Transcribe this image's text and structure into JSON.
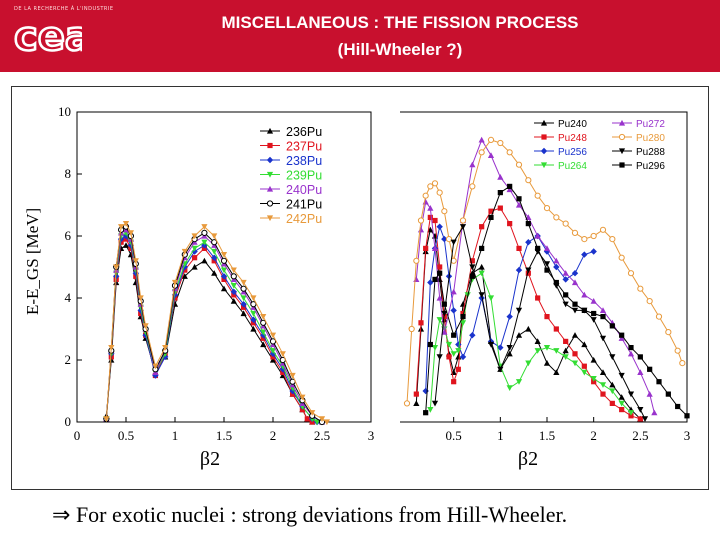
{
  "header": {
    "org_small": "DE LA RECHERCHE À L'INDUSTRIE",
    "logo_text": "cea",
    "title_line1": "MISCELLANEOUS : THE FISSION PROCESS",
    "title_line2": "(Hill-Wheeler ?)"
  },
  "caption": {
    "arrow": "⇒",
    "text": "For exotic nuclei : strong deviations from Hill-Wheeler."
  },
  "chart_data": [
    {
      "type": "line",
      "panel": "left",
      "ylabel": "E-E_GS [MeV]",
      "xlabel": "β2",
      "xlim": [
        0,
        3
      ],
      "ylim": [
        0,
        10
      ],
      "xticks": [
        "0",
        "0.5",
        "1",
        "1.5",
        "2",
        "2.5",
        "3"
      ],
      "yticks": [
        "0",
        "2",
        "4",
        "6",
        "8",
        "10"
      ],
      "legend_position": "top-right",
      "series": [
        {
          "name": "236Pu",
          "color": "#000000",
          "marker": "triangle",
          "x": [
            0.3,
            0.35,
            0.4,
            0.45,
            0.5,
            0.55,
            0.6,
            0.65,
            0.7,
            0.8,
            0.9,
            1.0,
            1.1,
            1.2,
            1.3,
            1.4,
            1.5,
            1.6,
            1.7,
            1.8,
            1.9,
            2.0,
            2.1,
            2.2,
            2.3,
            2.35,
            2.4
          ],
          "y": [
            0.2,
            2.0,
            4.5,
            5.6,
            5.7,
            5.4,
            4.5,
            3.4,
            2.7,
            1.6,
            2.1,
            3.8,
            4.7,
            5.0,
            5.2,
            4.8,
            4.3,
            3.9,
            3.5,
            3.0,
            2.5,
            2.0,
            1.5,
            0.9,
            0.4,
            0.1,
            0.0
          ]
        },
        {
          "name": "237Pu",
          "color": "#e0141e",
          "marker": "square",
          "x": [
            0.3,
            0.35,
            0.4,
            0.45,
            0.5,
            0.55,
            0.6,
            0.65,
            0.7,
            0.8,
            0.9,
            1.0,
            1.1,
            1.2,
            1.3,
            1.4,
            1.5,
            1.6,
            1.7,
            1.8,
            1.9,
            2.0,
            2.1,
            2.2,
            2.3,
            2.35,
            2.4
          ],
          "y": [
            0.1,
            2.1,
            4.6,
            5.8,
            5.9,
            5.6,
            4.7,
            3.5,
            2.8,
            1.5,
            2.2,
            4.0,
            4.9,
            5.3,
            5.6,
            5.2,
            4.6,
            4.1,
            3.7,
            3.2,
            2.7,
            2.1,
            1.6,
            0.9,
            0.4,
            0.1,
            0.0
          ]
        },
        {
          "name": "238Pu",
          "color": "#1a33cc",
          "marker": "diamond",
          "x": [
            0.3,
            0.35,
            0.4,
            0.45,
            0.5,
            0.55,
            0.6,
            0.65,
            0.7,
            0.8,
            0.9,
            1.0,
            1.1,
            1.2,
            1.3,
            1.4,
            1.5,
            1.6,
            1.7,
            1.8,
            1.9,
            2.0,
            2.1,
            2.2,
            2.3,
            2.4,
            2.45
          ],
          "y": [
            0.1,
            2.2,
            4.7,
            5.9,
            6.0,
            5.7,
            4.8,
            3.6,
            2.8,
            1.5,
            2.1,
            4.1,
            5.0,
            5.5,
            5.7,
            5.3,
            4.7,
            4.2,
            3.8,
            3.3,
            2.8,
            2.2,
            1.7,
            1.0,
            0.5,
            0.1,
            0.0
          ]
        },
        {
          "name": "239Pu",
          "color": "#33dd33",
          "marker": "triangle-down",
          "x": [
            0.3,
            0.35,
            0.4,
            0.45,
            0.5,
            0.55,
            0.6,
            0.65,
            0.7,
            0.8,
            0.9,
            1.0,
            1.1,
            1.2,
            1.3,
            1.4,
            1.5,
            1.6,
            1.7,
            1.8,
            1.9,
            2.0,
            2.1,
            2.2,
            2.3,
            2.4,
            2.45
          ],
          "y": [
            0.1,
            2.2,
            4.8,
            6.0,
            6.1,
            5.8,
            4.9,
            3.7,
            2.9,
            1.6,
            2.2,
            4.2,
            5.1,
            5.6,
            5.8,
            5.5,
            4.9,
            4.4,
            4.0,
            3.5,
            2.9,
            2.3,
            1.8,
            1.1,
            0.5,
            0.1,
            0.0
          ]
        },
        {
          "name": "240Pu",
          "color": "#9933cc",
          "marker": "triangle",
          "x": [
            0.3,
            0.35,
            0.4,
            0.45,
            0.5,
            0.55,
            0.6,
            0.65,
            0.7,
            0.8,
            0.9,
            1.0,
            1.1,
            1.2,
            1.3,
            1.4,
            1.5,
            1.6,
            1.7,
            1.8,
            1.9,
            2.0,
            2.1,
            2.2,
            2.3,
            2.4,
            2.5
          ],
          "y": [
            0.1,
            2.3,
            4.9,
            6.1,
            6.2,
            5.9,
            5.0,
            3.8,
            3.0,
            1.6,
            2.3,
            4.3,
            5.3,
            5.8,
            6.0,
            5.7,
            5.1,
            4.6,
            4.2,
            3.7,
            3.1,
            2.5,
            1.9,
            1.2,
            0.6,
            0.2,
            0.0
          ]
        },
        {
          "name": "241Pu",
          "color": "#000000",
          "marker": "open-circle",
          "x": [
            0.3,
            0.35,
            0.4,
            0.45,
            0.5,
            0.55,
            0.6,
            0.65,
            0.7,
            0.8,
            0.9,
            1.0,
            1.1,
            1.2,
            1.3,
            1.4,
            1.5,
            1.6,
            1.7,
            1.8,
            1.9,
            2.0,
            2.1,
            2.2,
            2.3,
            2.4,
            2.5
          ],
          "y": [
            0.1,
            2.3,
            5.0,
            6.2,
            6.3,
            6.0,
            5.1,
            3.9,
            3.0,
            1.7,
            2.3,
            4.4,
            5.4,
            5.9,
            6.1,
            5.8,
            5.2,
            4.7,
            4.3,
            3.8,
            3.2,
            2.6,
            2.0,
            1.3,
            0.7,
            0.2,
            0.0
          ]
        },
        {
          "name": "242Pu",
          "color": "#e89a3c",
          "marker": "triangle-down",
          "x": [
            0.3,
            0.35,
            0.4,
            0.45,
            0.5,
            0.55,
            0.6,
            0.65,
            0.7,
            0.8,
            0.9,
            1.0,
            1.1,
            1.2,
            1.3,
            1.4,
            1.5,
            1.6,
            1.7,
            1.8,
            1.9,
            2.0,
            2.1,
            2.2,
            2.3,
            2.4,
            2.5,
            2.55
          ],
          "y": [
            0.1,
            2.4,
            5.0,
            6.3,
            6.4,
            6.1,
            5.2,
            4.0,
            3.1,
            1.8,
            2.4,
            4.5,
            5.5,
            6.0,
            6.3,
            6.0,
            5.4,
            4.9,
            4.5,
            4.0,
            3.4,
            2.8,
            2.2,
            1.5,
            0.8,
            0.3,
            0.1,
            0.0
          ]
        }
      ]
    },
    {
      "type": "line",
      "panel": "right",
      "xlabel": "β2",
      "xlim": [
        0,
        3
      ],
      "xticks": [
        "0.5",
        "1",
        "1.5",
        "2",
        "2.5",
        "3"
      ],
      "legend_position": "top-right",
      "series": [
        {
          "name": "Pu240",
          "color": "#000000",
          "marker": "triangle",
          "x": [
            0.1,
            0.15,
            0.2,
            0.25,
            0.3,
            0.35,
            0.4,
            0.45,
            0.5,
            0.55,
            0.6,
            0.7,
            0.8,
            0.9,
            1.0,
            1.1,
            1.2,
            1.3,
            1.4,
            1.5,
            1.6,
            1.7,
            1.8,
            1.9,
            2.0,
            2.1,
            2.2,
            2.3,
            2.4,
            2.5
          ],
          "y": [
            0.6,
            3.0,
            5.5,
            6.2,
            6.0,
            4.6,
            3.3,
            2.2,
            1.6,
            2.1,
            3.8,
            4.8,
            5.0,
            2.6,
            1.7,
            2.2,
            2.8,
            3.0,
            2.6,
            1.9,
            1.6,
            2.3,
            2.8,
            2.5,
            2.0,
            1.6,
            1.2,
            0.8,
            0.4,
            0.1
          ]
        },
        {
          "name": "Pu248",
          "color": "#e0141e",
          "marker": "square",
          "x": [
            0.1,
            0.15,
            0.2,
            0.25,
            0.3,
            0.35,
            0.4,
            0.45,
            0.5,
            0.55,
            0.6,
            0.7,
            0.8,
            0.9,
            1.0,
            1.1,
            1.2,
            1.3,
            1.4,
            1.5,
            1.6,
            1.7,
            1.8,
            1.9,
            2.0,
            2.1,
            2.2,
            2.3,
            2.4,
            2.5
          ],
          "y": [
            0.9,
            3.2,
            5.6,
            6.6,
            6.5,
            5.0,
            3.4,
            2.1,
            1.3,
            1.7,
            3.5,
            5.2,
            6.3,
            6.8,
            6.9,
            6.4,
            5.6,
            4.8,
            4.0,
            3.4,
            3.0,
            2.6,
            2.2,
            1.8,
            1.3,
            0.9,
            0.6,
            0.4,
            0.2,
            0.1
          ]
        },
        {
          "name": "Pu256",
          "color": "#1a33cc",
          "marker": "diamond",
          "x": [
            0.2,
            0.25,
            0.3,
            0.35,
            0.4,
            0.45,
            0.5,
            0.55,
            0.6,
            0.7,
            0.8,
            0.9,
            1.0,
            1.1,
            1.2,
            1.3,
            1.4,
            1.5,
            1.6,
            1.7,
            1.8,
            1.9,
            2.0
          ],
          "y": [
            1.0,
            4.5,
            5.6,
            6.3,
            5.9,
            4.7,
            3.6,
            2.5,
            2.1,
            2.8,
            4.0,
            2.6,
            2.4,
            3.4,
            4.9,
            5.8,
            6.0,
            5.5,
            5.0,
            4.6,
            4.8,
            5.4,
            5.5
          ]
        },
        {
          "name": "Pu264",
          "color": "#33dd33",
          "marker": "triangle-down",
          "x": [
            0.25,
            0.3,
            0.35,
            0.4,
            0.45,
            0.5,
            0.55,
            0.6,
            0.65,
            0.7,
            0.8,
            0.9,
            1.0,
            1.1,
            1.2,
            1.3,
            1.4,
            1.5,
            1.6,
            1.7,
            1.8,
            1.9,
            2.0,
            2.1,
            2.2,
            2.3,
            2.4
          ],
          "y": [
            0.4,
            2.4,
            3.3,
            3.0,
            2.5,
            2.2,
            2.3,
            3.2,
            4.1,
            4.6,
            4.8,
            4.0,
            1.8,
            1.1,
            1.3,
            1.9,
            2.3,
            2.4,
            2.3,
            2.1,
            1.9,
            1.6,
            1.4,
            1.2,
            1.0,
            0.6,
            0.3
          ]
        },
        {
          "name": "Pu272",
          "color": "#9933cc",
          "marker": "triangle",
          "x": [
            0.1,
            0.15,
            0.2,
            0.25,
            0.3,
            0.35,
            0.4,
            0.5,
            0.6,
            0.7,
            0.8,
            0.9,
            1.0,
            1.1,
            1.2,
            1.3,
            1.4,
            1.5,
            1.6,
            1.7,
            1.8,
            1.9,
            2.0,
            2.1,
            2.2,
            2.3,
            2.4,
            2.5,
            2.6,
            2.65
          ],
          "y": [
            4.6,
            6.2,
            7.1,
            6.9,
            5.6,
            4.0,
            2.9,
            4.2,
            6.5,
            8.3,
            9.1,
            8.6,
            7.9,
            7.5,
            7.0,
            6.6,
            6.0,
            5.6,
            5.2,
            4.8,
            4.5,
            4.1,
            3.9,
            3.6,
            3.2,
            2.7,
            2.2,
            1.6,
            0.9,
            0.3
          ]
        },
        {
          "name": "Pu280",
          "color": "#e89a3c",
          "marker": "open-circle",
          "x": [
            0.0,
            0.05,
            0.1,
            0.15,
            0.2,
            0.25,
            0.3,
            0.35,
            0.4,
            0.45,
            0.5,
            0.6,
            0.7,
            0.8,
            0.9,
            1.0,
            1.1,
            1.2,
            1.3,
            1.4,
            1.5,
            1.6,
            1.7,
            1.8,
            1.9,
            2.0,
            2.1,
            2.2,
            2.3,
            2.4,
            2.5,
            2.6,
            2.7,
            2.8,
            2.9,
            2.95
          ],
          "y": [
            0.6,
            3.0,
            5.2,
            6.5,
            7.3,
            7.6,
            7.7,
            7.4,
            6.8,
            5.9,
            5.2,
            6.5,
            7.6,
            8.7,
            9.1,
            9.0,
            8.7,
            8.3,
            7.8,
            7.3,
            6.9,
            6.6,
            6.4,
            6.1,
            5.9,
            6.0,
            6.2,
            5.9,
            5.3,
            4.8,
            4.3,
            3.9,
            3.4,
            2.9,
            2.3,
            1.9
          ]
        },
        {
          "name": "Pu288",
          "color": "#000000",
          "marker": "triangle-down",
          "x": [
            0.3,
            0.35,
            0.4,
            0.5,
            0.6,
            0.7,
            0.8,
            0.9,
            1.0,
            1.1,
            1.2,
            1.3,
            1.4,
            1.5,
            1.6,
            1.7,
            1.8,
            1.9,
            2.0,
            2.1,
            2.2,
            2.3,
            2.4,
            2.5,
            2.55
          ],
          "y": [
            0.6,
            2.1,
            3.5,
            5.8,
            6.3,
            5.0,
            4.1,
            2.5,
            1.7,
            2.4,
            3.6,
            4.9,
            5.5,
            5.1,
            4.4,
            3.8,
            3.6,
            3.6,
            3.3,
            2.7,
            2.1,
            1.5,
            0.9,
            0.4,
            0.1
          ]
        },
        {
          "name": "Pu296",
          "color": "#000000",
          "marker": "square",
          "x": [
            0.2,
            0.25,
            0.3,
            0.35,
            0.4,
            0.5,
            0.6,
            0.7,
            0.8,
            0.9,
            1.0,
            1.1,
            1.2,
            1.3,
            1.4,
            1.5,
            1.6,
            1.7,
            1.8,
            1.9,
            2.0,
            2.1,
            2.2,
            2.3,
            2.4,
            2.5,
            2.6,
            2.7,
            2.8,
            2.9,
            3.0
          ],
          "y": [
            0.3,
            2.5,
            4.6,
            4.8,
            3.8,
            2.8,
            3.4,
            4.7,
            5.6,
            6.6,
            7.4,
            7.6,
            7.2,
            6.4,
            5.6,
            4.9,
            4.5,
            4.1,
            3.8,
            3.6,
            3.5,
            3.4,
            3.1,
            2.8,
            2.4,
            2.1,
            1.7,
            1.3,
            0.9,
            0.5,
            0.2
          ]
        }
      ]
    }
  ]
}
